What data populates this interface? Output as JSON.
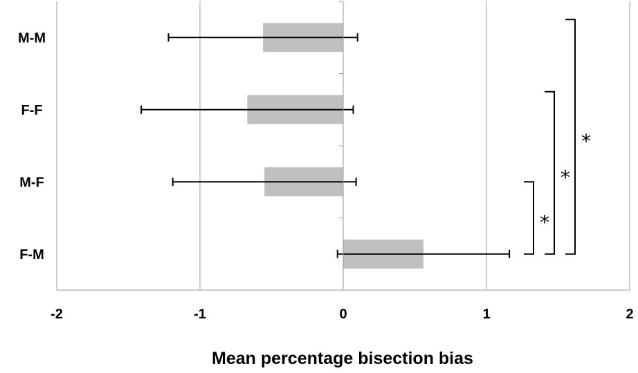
{
  "chart_data": {
    "type": "bar",
    "orientation": "horizontal",
    "categories": [
      "M-M",
      "F-F",
      "M-F",
      "F-M"
    ],
    "values": [
      -0.56,
      -0.67,
      -0.55,
      0.56
    ],
    "error_low": [
      -1.22,
      -1.41,
      -1.19,
      -0.04
    ],
    "error_high": [
      0.1,
      0.07,
      0.09,
      1.16
    ],
    "xlim": [
      -2,
      2
    ],
    "xticks": [
      -2,
      -1,
      0,
      1,
      2
    ],
    "xlabel": "Mean percentage bisection bias",
    "ylabel": "",
    "title": "",
    "grid": "vertical",
    "bar_color": "#c0c0c0",
    "grid_color": "#999999",
    "significance": [
      {
        "from": "M-F",
        "to": "F-M",
        "label": "*"
      },
      {
        "from": "F-F",
        "to": "F-M",
        "label": "*"
      },
      {
        "from": "M-M",
        "to": "F-M",
        "label": "*"
      }
    ]
  }
}
